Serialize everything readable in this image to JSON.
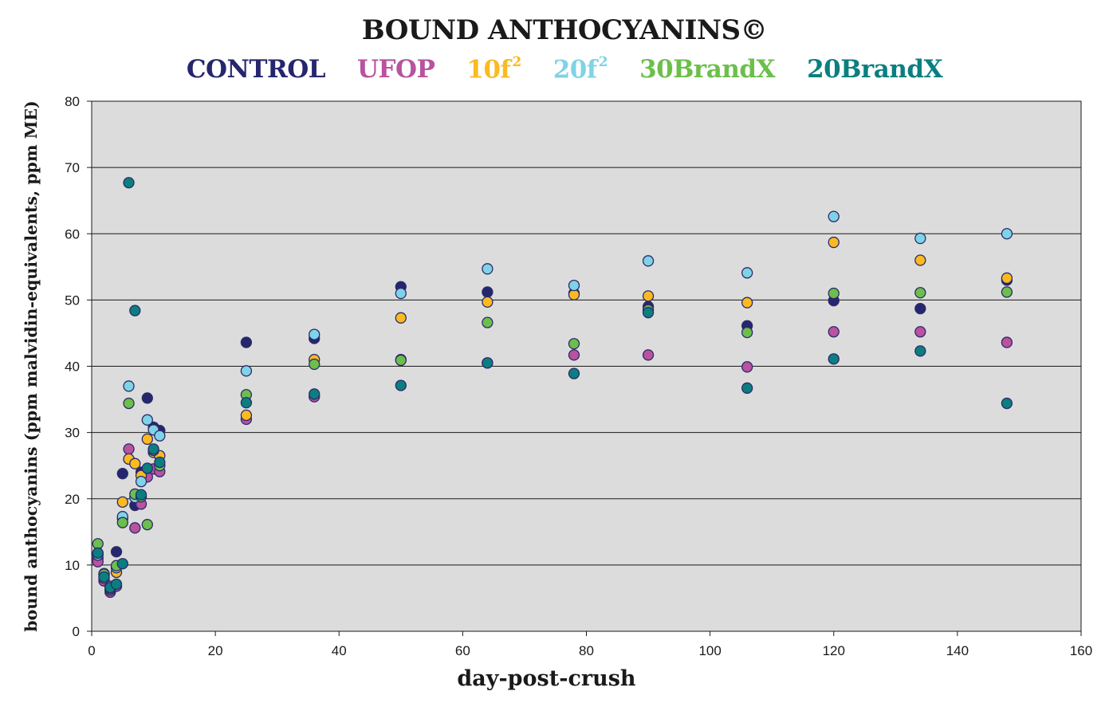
{
  "chart_data": {
    "type": "scatter",
    "title": "BOUND ANTHOCYANINS©",
    "xlabel": "day-post-crush",
    "ylabel": "bound anthocyanins (ppm malvidin-equivalents, ppm ME)",
    "xlim": [
      0,
      160
    ],
    "ylim": [
      0,
      80
    ],
    "x_ticks": [
      0,
      20,
      40,
      60,
      80,
      100,
      120,
      140,
      160
    ],
    "y_ticks": [
      0,
      10,
      20,
      30,
      40,
      50,
      60,
      70,
      80
    ],
    "grid": "horizontal",
    "legend_position": "top-center",
    "plot_background": "#dcdcdc",
    "marker_edge_color": "#2b2b6b",
    "series": [
      {
        "name": "CONTROL",
        "superscript": "",
        "color": "#26266e",
        "points": [
          [
            1,
            11.0
          ],
          [
            2,
            8.7
          ],
          [
            3,
            6.6
          ],
          [
            4,
            12.0
          ],
          [
            5,
            23.8
          ],
          [
            6,
            26.0
          ],
          [
            7,
            19.0
          ],
          [
            8,
            24.0
          ],
          [
            9,
            35.2
          ],
          [
            10,
            30.8
          ],
          [
            11,
            30.3
          ],
          [
            25,
            43.6
          ],
          [
            36,
            44.2
          ],
          [
            50,
            52.0
          ],
          [
            64,
            51.2
          ],
          [
            78,
            51.0
          ],
          [
            90,
            49.0
          ],
          [
            106,
            46.1
          ],
          [
            120,
            49.9
          ],
          [
            134,
            48.7
          ],
          [
            148,
            53.0
          ]
        ]
      },
      {
        "name": "UFOP",
        "superscript": "",
        "color": "#b9529f",
        "points": [
          [
            1,
            10.5
          ],
          [
            2,
            7.6
          ],
          [
            3,
            5.9
          ],
          [
            4,
            6.8
          ],
          [
            5,
            17.0
          ],
          [
            6,
            27.5
          ],
          [
            7,
            15.6
          ],
          [
            8,
            19.2
          ],
          [
            9,
            23.3
          ],
          [
            10,
            24.5
          ],
          [
            11,
            24.1
          ],
          [
            25,
            32.0
          ],
          [
            36,
            35.4
          ],
          [
            50,
            41.0
          ],
          [
            64,
            40.5
          ],
          [
            78,
            41.7
          ],
          [
            90,
            41.7
          ],
          [
            106,
            39.9
          ],
          [
            120,
            45.2
          ],
          [
            134,
            45.2
          ],
          [
            148,
            43.6
          ]
        ]
      },
      {
        "name": "10f",
        "superscript": "2",
        "color": "#fbba1f",
        "points": [
          [
            1,
            11.8
          ],
          [
            2,
            8.0
          ],
          [
            3,
            6.2
          ],
          [
            4,
            8.9
          ],
          [
            5,
            19.5
          ],
          [
            6,
            26.0
          ],
          [
            7,
            25.3
          ],
          [
            8,
            23.5
          ],
          [
            9,
            29.0
          ],
          [
            10,
            27.0
          ],
          [
            11,
            26.5
          ],
          [
            25,
            32.6
          ],
          [
            36,
            41.0
          ],
          [
            50,
            47.3
          ],
          [
            64,
            49.7
          ],
          [
            78,
            50.8
          ],
          [
            90,
            50.6
          ],
          [
            106,
            49.6
          ],
          [
            120,
            58.7
          ],
          [
            134,
            56.0
          ],
          [
            148,
            53.3
          ]
        ]
      },
      {
        "name": "20f",
        "superscript": "2",
        "color": "#7fd3e6",
        "points": [
          [
            1,
            11.5
          ],
          [
            2,
            8.4
          ],
          [
            3,
            6.8
          ],
          [
            4,
            9.6
          ],
          [
            5,
            17.3
          ],
          [
            6,
            37.0
          ],
          [
            7,
            20.2
          ],
          [
            8,
            22.6
          ],
          [
            9,
            31.9
          ],
          [
            10,
            30.4
          ],
          [
            11,
            29.5
          ],
          [
            25,
            39.3
          ],
          [
            36,
            44.8
          ],
          [
            50,
            51.0
          ],
          [
            64,
            54.7
          ],
          [
            78,
            52.2
          ],
          [
            90,
            55.9
          ],
          [
            106,
            54.1
          ],
          [
            120,
            62.6
          ],
          [
            134,
            59.3
          ],
          [
            148,
            60.0
          ]
        ]
      },
      {
        "name": "30BrandX",
        "superscript": "",
        "color": "#6cbf4a",
        "points": [
          [
            1,
            13.2
          ],
          [
            2,
            8.6
          ],
          [
            3,
            6.4
          ],
          [
            4,
            9.9
          ],
          [
            5,
            16.4
          ],
          [
            6,
            34.4
          ],
          [
            7,
            20.7
          ],
          [
            8,
            20.3
          ],
          [
            9,
            16.1
          ],
          [
            10,
            27.3
          ],
          [
            11,
            25.0
          ],
          [
            25,
            35.7
          ],
          [
            36,
            40.3
          ],
          [
            50,
            40.9
          ],
          [
            64,
            46.6
          ],
          [
            78,
            43.4
          ],
          [
            90,
            48.5
          ],
          [
            106,
            45.1
          ],
          [
            120,
            51.0
          ],
          [
            134,
            51.1
          ],
          [
            148,
            51.2
          ]
        ]
      },
      {
        "name": "20BrandX",
        "superscript": "",
        "color": "#0b7f80",
        "points": [
          [
            1,
            11.8
          ],
          [
            2,
            8.2
          ],
          [
            3,
            6.6
          ],
          [
            4,
            7.1
          ],
          [
            5,
            10.2
          ],
          [
            6,
            67.7
          ],
          [
            7,
            48.4
          ],
          [
            8,
            20.6
          ],
          [
            9,
            24.6
          ],
          [
            10,
            27.5
          ],
          [
            11,
            25.5
          ],
          [
            25,
            34.5
          ],
          [
            36,
            35.8
          ],
          [
            50,
            37.1
          ],
          [
            64,
            40.5
          ],
          [
            78,
            38.9
          ],
          [
            90,
            48.1
          ],
          [
            106,
            36.7
          ],
          [
            120,
            41.1
          ],
          [
            134,
            42.3
          ],
          [
            148,
            34.4
          ]
        ]
      }
    ]
  }
}
